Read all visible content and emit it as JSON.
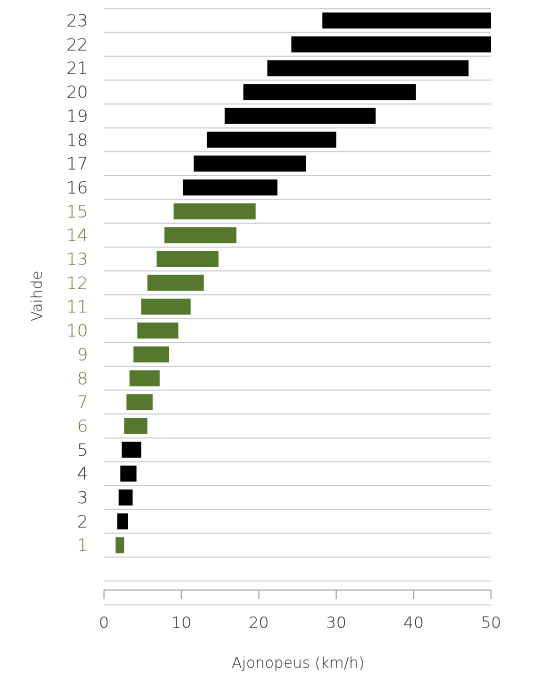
{
  "chart_data": {
    "type": "bar",
    "orientation": "horizontal-range",
    "title": "",
    "xlabel": "Ajonopeus (km/h)",
    "ylabel": "Vaihde",
    "xlim": [
      0,
      50
    ],
    "xticks": [
      0,
      10,
      20,
      30,
      40,
      50
    ],
    "grid": "horizontal",
    "categories": [
      "1",
      "2",
      "3",
      "4",
      "5",
      "6",
      "7",
      "8",
      "9",
      "10",
      "11",
      "12",
      "13",
      "14",
      "15",
      "16",
      "17",
      "18",
      "19",
      "20",
      "21",
      "22",
      "23"
    ],
    "ranges": [
      [
        1.5,
        2.6
      ],
      [
        1.7,
        3.1
      ],
      [
        1.9,
        3.7
      ],
      [
        2.1,
        4.2
      ],
      [
        2.3,
        4.8
      ],
      [
        2.6,
        5.6
      ],
      [
        2.9,
        6.3
      ],
      [
        3.3,
        7.2
      ],
      [
        3.8,
        8.4
      ],
      [
        4.3,
        9.6
      ],
      [
        4.8,
        11.2
      ],
      [
        5.6,
        12.9
      ],
      [
        6.8,
        14.8
      ],
      [
        7.8,
        17.1
      ],
      [
        9.0,
        19.6
      ],
      [
        10.2,
        22.4
      ],
      [
        11.6,
        26.1
      ],
      [
        13.3,
        30.0
      ],
      [
        15.6,
        35.1
      ],
      [
        18.0,
        40.3
      ],
      [
        21.1,
        47.1
      ],
      [
        24.2,
        50.0
      ],
      [
        28.2,
        50.0
      ]
    ],
    "colors": {
      "black": "#000000",
      "green": "#55782e",
      "grid": "#c8c8c8",
      "axis": "#999999",
      "text": "#222222"
    },
    "highlight_range": [
      6,
      15
    ],
    "highlight_extra": [
      1
    ]
  }
}
